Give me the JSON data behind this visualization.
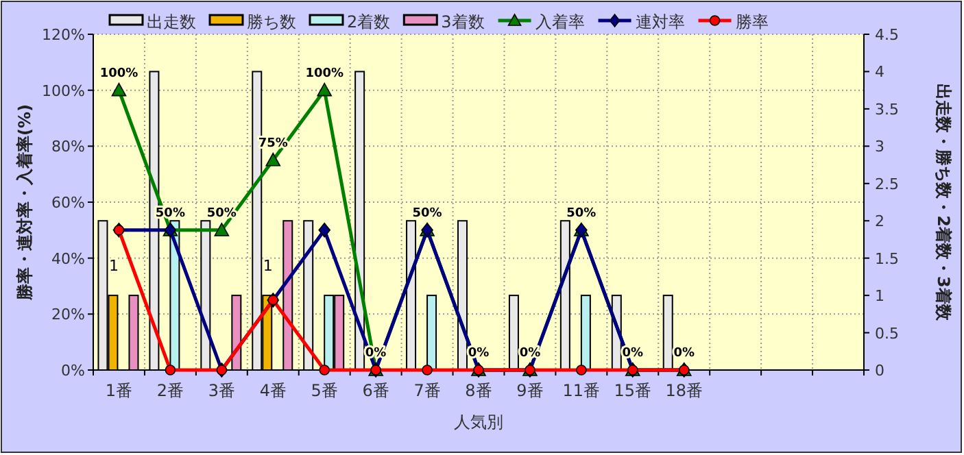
{
  "chart_data": {
    "type": "bar",
    "categories": [
      "1番",
      "2番",
      "3番",
      "4番",
      "5番",
      "6番",
      "7番",
      "8番",
      "9番",
      "11番",
      "15番",
      "18番",
      null,
      null,
      null
    ],
    "xlabel": "人気別",
    "ylabel": "勝率・連対率・入着率(%)",
    "y2label": "出走数・勝ち数・2着数・3着数",
    "ylim": [
      0,
      120
    ],
    "yticks": [
      {
        "value": 0,
        "label": "0%"
      },
      {
        "value": 20,
        "label": "20%"
      },
      {
        "value": 40,
        "label": "40%"
      },
      {
        "value": 60,
        "label": "60%"
      },
      {
        "value": 80,
        "label": "80%"
      },
      {
        "value": 100,
        "label": "100%"
      },
      {
        "value": 120,
        "label": "120%"
      }
    ],
    "y2lim": [
      0,
      4.5
    ],
    "y2ticks": [
      0,
      0.5,
      1,
      1.5,
      2,
      2.5,
      3,
      3.5,
      4,
      4.5
    ],
    "grid": true,
    "legend": "top",
    "series": [
      {
        "name": "出走数",
        "axis": "y2",
        "color": "#e8e8e8",
        "values": [
          2,
          4,
          2,
          4,
          2,
          4,
          2,
          2,
          1,
          2,
          1,
          1,
          null,
          null,
          null
        ]
      },
      {
        "name": "勝ち数",
        "axis": "y2",
        "color": "#f0b400",
        "values": [
          1,
          0,
          0,
          1,
          0,
          0,
          0,
          0,
          0,
          0,
          0,
          0,
          null,
          null,
          null
        ],
        "value_labels": [
          "1",
          null,
          null,
          "1",
          null,
          null,
          null,
          null,
          null,
          null,
          null,
          null,
          null,
          null,
          null
        ]
      },
      {
        "name": "2着数",
        "axis": "y2",
        "color": "#b8f0f0",
        "values": [
          0,
          2,
          0,
          0,
          1,
          0,
          1,
          0,
          0,
          1,
          0,
          0,
          null,
          null,
          null
        ]
      },
      {
        "name": "3着数",
        "axis": "y2",
        "color": "#e890c0",
        "values": [
          1,
          0,
          1,
          2,
          1,
          0,
          0,
          0,
          0,
          0,
          0,
          0,
          null,
          null,
          null
        ]
      },
      {
        "name": "入着率",
        "type": "line",
        "axis": "y",
        "color": "#008000",
        "marker": "triangle",
        "values": [
          100,
          50,
          50,
          75,
          100,
          0,
          50,
          0,
          0,
          50,
          0,
          0,
          null,
          null,
          null
        ],
        "value_labels": [
          "100%",
          "50%",
          "50%",
          "75%",
          "100%",
          "0%",
          "50%",
          "0%",
          "0%",
          "50%",
          "0%",
          "0%",
          null,
          null,
          null
        ]
      },
      {
        "name": "連対率",
        "type": "line",
        "axis": "y",
        "color": "#000080",
        "marker": "diamond",
        "values": [
          50,
          50,
          0,
          25,
          50,
          0,
          50,
          0,
          0,
          50,
          0,
          0,
          null,
          null,
          null
        ]
      },
      {
        "name": "勝率",
        "type": "line",
        "axis": "y",
        "color": "#ff0000",
        "marker": "circle",
        "values": [
          50,
          0,
          0,
          25,
          0,
          0,
          0,
          0,
          0,
          0,
          0,
          0,
          null,
          null,
          null
        ]
      }
    ]
  }
}
